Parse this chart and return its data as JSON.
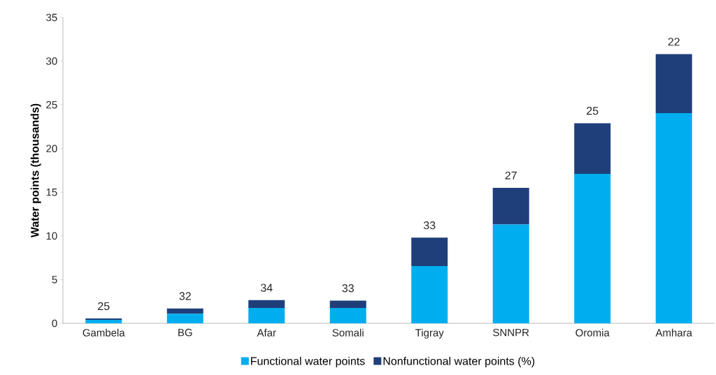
{
  "chart_data": {
    "type": "bar",
    "stacked": true,
    "ylabel": "Water points (thousands)",
    "categories": [
      "Gambela",
      "BG",
      "Afar",
      "Somali",
      "Tigray",
      "SNNPR",
      "Oromia",
      "Amhara"
    ],
    "series": [
      {
        "name": "Functional water points",
        "color": "#00aeef",
        "values": [
          0.4,
          1.1,
          1.75,
          1.75,
          6.55,
          11.3,
          17.1,
          24.05
        ]
      },
      {
        "name": "Nonfunctional water points (%)",
        "color": "#1f3f7a",
        "values": [
          0.15,
          0.6,
          0.9,
          0.85,
          3.25,
          4.2,
          5.8,
          6.75
        ]
      }
    ],
    "annotations": [
      {
        "text": "25",
        "x": "Gambela",
        "y": 0.55
      },
      {
        "text": "32",
        "x": "BG",
        "y": 1.7
      },
      {
        "text": "34",
        "x": "Afar",
        "y": 2.65
      },
      {
        "text": "33",
        "x": "Somali",
        "y": 2.6
      },
      {
        "text": "33",
        "x": "Tigray",
        "y": 9.8
      },
      {
        "text": "27",
        "x": "SNNPR",
        "y": 15.5
      },
      {
        "text": "25",
        "x": "Oromia",
        "y": 22.9
      },
      {
        "text": "22",
        "x": "Amhara",
        "y": 30.8
      }
    ],
    "ylim": [
      0,
      35
    ],
    "yticks": [
      0,
      5,
      10,
      15,
      20,
      25,
      30,
      35
    ],
    "grid": false,
    "legend": "bottom"
  }
}
